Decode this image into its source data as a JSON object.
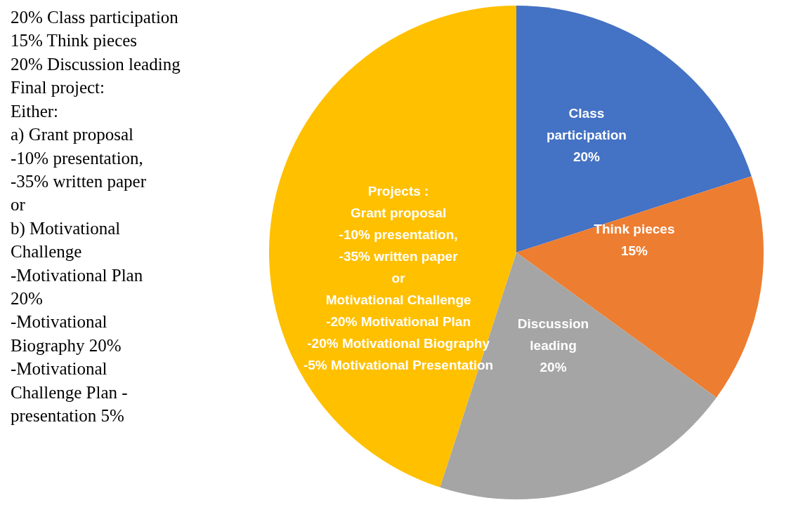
{
  "chart_data": [
    {
      "type": "other",
      "annotations": [
        "20% Class participation",
        "15% Think pieces",
        "20% Discussion leading",
        "Final project:",
        "Either:",
        "a)  Grant proposal",
        "-10% presentation,",
        "-35% written paper",
        "or",
        "b)  Motivational",
        "Challenge",
        "-Motivational Plan",
        "20%",
        "-Motivational",
        "Biography 20%",
        "-Motivational",
        "Challenge Plan -",
        "presentation 5%"
      ]
    },
    {
      "type": "pie",
      "categories": [
        "Class\nparticipation",
        "Think pieces",
        "Discussion\nleading",
        "Projects :\nGrant proposal\n-10% presentation,\n-35% written paper\nor\nMotivational Challenge\n-20% Motivational Plan\n-20% Motivational Biography\n-5% Motivational Presentation"
      ],
      "values": [
        20,
        15,
        20,
        45
      ],
      "value_labels": [
        "20%",
        "15%",
        "20%",
        null
      ],
      "colors": [
        "#4472c4",
        "#ed7d31",
        "#a5a5a5",
        "#ffc000"
      ],
      "legend": false
    }
  ]
}
